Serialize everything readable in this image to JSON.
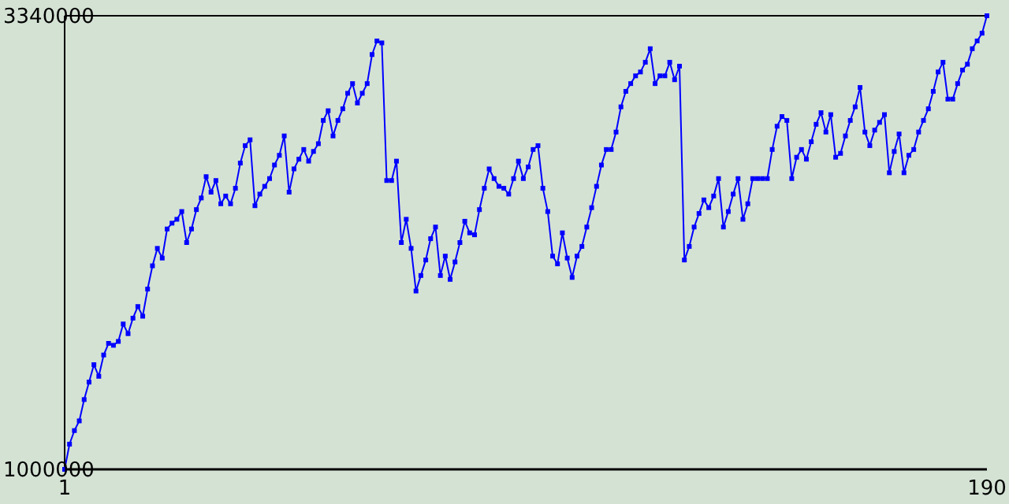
{
  "chart_data": {
    "type": "line",
    "marker": "square",
    "xlim": [
      1,
      190
    ],
    "xticks": [
      1,
      190
    ],
    "ylim": [
      1000000,
      3340000
    ],
    "yticks": [
      1000000,
      3340000
    ],
    "x": [
      1,
      2,
      3,
      4,
      5,
      6,
      7,
      8,
      9,
      10,
      11,
      12,
      13,
      14,
      15,
      16,
      17,
      18,
      19,
      20,
      21,
      22,
      23,
      24,
      25,
      26,
      27,
      28,
      29,
      30,
      31,
      32,
      33,
      34,
      35,
      36,
      37,
      38,
      39,
      40,
      41,
      42,
      43,
      44,
      45,
      46,
      47,
      48,
      49,
      50,
      51,
      52,
      53,
      54,
      55,
      56,
      57,
      58,
      59,
      60,
      61,
      62,
      63,
      64,
      65,
      66,
      67,
      68,
      69,
      70,
      71,
      72,
      73,
      74,
      75,
      76,
      77,
      78,
      79,
      80,
      81,
      82,
      83,
      84,
      85,
      86,
      87,
      88,
      89,
      90,
      91,
      92,
      93,
      94,
      95,
      96,
      97,
      98,
      99,
      100,
      101,
      102,
      103,
      104,
      105,
      106,
      107,
      108,
      109,
      110,
      111,
      112,
      113,
      114,
      115,
      116,
      117,
      118,
      119,
      120,
      121,
      122,
      123,
      124,
      125,
      126,
      127,
      128,
      129,
      130,
      131,
      132,
      133,
      134,
      135,
      136,
      137,
      138,
      139,
      140,
      141,
      142,
      143,
      144,
      145,
      146,
      147,
      148,
      149,
      150,
      151,
      152,
      153,
      154,
      155,
      156,
      157,
      158,
      159,
      160,
      161,
      162,
      163,
      164,
      165,
      166,
      167,
      168,
      169,
      170,
      171,
      172,
      173,
      174,
      175,
      176,
      177,
      178,
      179,
      180,
      181,
      182,
      183,
      184,
      185,
      186,
      187,
      188,
      189,
      190
    ],
    "series": [
      {
        "color": "#0000ff",
        "values": [
          1000000,
          1130000,
          1200000,
          1250000,
          1360000,
          1450000,
          1540000,
          1480000,
          1590000,
          1650000,
          1640000,
          1660000,
          1750000,
          1700000,
          1780000,
          1840000,
          1790000,
          1930000,
          2050000,
          2140000,
          2090000,
          2240000,
          2270000,
          2290000,
          2330000,
          2170000,
          2240000,
          2340000,
          2400000,
          2510000,
          2430000,
          2490000,
          2370000,
          2410000,
          2370000,
          2450000,
          2580000,
          2670000,
          2700000,
          2360000,
          2420000,
          2460000,
          2500000,
          2570000,
          2620000,
          2720000,
          2430000,
          2550000,
          2600000,
          2650000,
          2590000,
          2640000,
          2680000,
          2800000,
          2850000,
          2720000,
          2800000,
          2860000,
          2940000,
          2990000,
          2890000,
          2940000,
          2990000,
          3140000,
          3210000,
          3200000,
          2490000,
          2490000,
          2590000,
          2170000,
          2290000,
          2140000,
          1920000,
          2000000,
          2080000,
          2190000,
          2250000,
          2000000,
          2100000,
          1980000,
          2070000,
          2170000,
          2280000,
          2220000,
          2210000,
          2340000,
          2450000,
          2550000,
          2500000,
          2460000,
          2450000,
          2420000,
          2500000,
          2590000,
          2500000,
          2560000,
          2650000,
          2670000,
          2450000,
          2330000,
          2100000,
          2060000,
          2220000,
          2090000,
          1990000,
          2100000,
          2150000,
          2250000,
          2350000,
          2460000,
          2570000,
          2650000,
          2650000,
          2740000,
          2870000,
          2950000,
          2990000,
          3030000,
          3050000,
          3100000,
          3170000,
          2990000,
          3030000,
          3030000,
          3100000,
          3010000,
          3080000,
          2080000,
          2150000,
          2250000,
          2320000,
          2390000,
          2350000,
          2410000,
          2500000,
          2250000,
          2330000,
          2420000,
          2500000,
          2290000,
          2370000,
          2500000,
          2500000,
          2500000,
          2500000,
          2650000,
          2770000,
          2820000,
          2800000,
          2500000,
          2610000,
          2650000,
          2600000,
          2690000,
          2780000,
          2840000,
          2740000,
          2830000,
          2610000,
          2630000,
          2720000,
          2800000,
          2870000,
          2970000,
          2740000,
          2670000,
          2750000,
          2790000,
          2830000,
          2530000,
          2640000,
          2730000,
          2530000,
          2620000,
          2650000,
          2740000,
          2800000,
          2860000,
          2950000,
          3050000,
          3100000,
          2910000,
          2910000,
          2990000,
          3060000,
          3090000,
          3170000,
          3210000,
          3250000,
          3340000
        ]
      }
    ]
  }
}
